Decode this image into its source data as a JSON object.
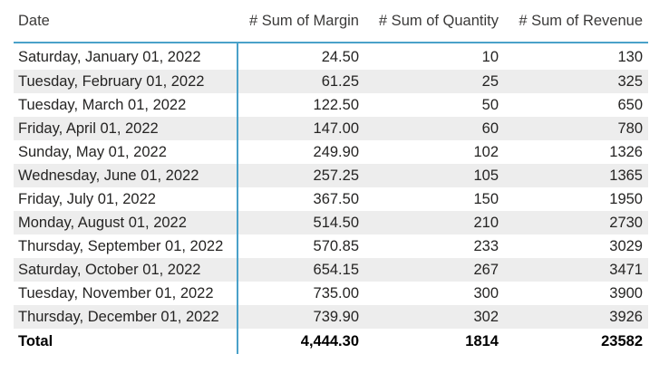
{
  "table": {
    "columns": [
      "Date",
      "# Sum of Margin",
      "# Sum of Quantity",
      "# Sum of Revenue"
    ],
    "rows": [
      [
        "Saturday, January 01, 2022",
        "24.50",
        "10",
        "130"
      ],
      [
        "Tuesday, February 01, 2022",
        "61.25",
        "25",
        "325"
      ],
      [
        "Tuesday, March 01, 2022",
        "122.50",
        "50",
        "650"
      ],
      [
        "Friday, April 01, 2022",
        "147.00",
        "60",
        "780"
      ],
      [
        "Sunday, May 01, 2022",
        "249.90",
        "102",
        "1326"
      ],
      [
        "Wednesday, June 01, 2022",
        "257.25",
        "105",
        "1365"
      ],
      [
        "Friday, July 01, 2022",
        "367.50",
        "150",
        "1950"
      ],
      [
        "Monday, August 01, 2022",
        "514.50",
        "210",
        "2730"
      ],
      [
        "Thursday, September 01, 2022",
        "570.85",
        "233",
        "3029"
      ],
      [
        "Saturday, October 01, 2022",
        "654.15",
        "267",
        "3471"
      ],
      [
        "Tuesday, November 01, 2022",
        "735.00",
        "300",
        "3900"
      ],
      [
        "Thursday, December 01, 2022",
        "739.90",
        "302",
        "3926"
      ]
    ],
    "total": {
      "label": "Total",
      "margin": "4,444.30",
      "quantity": "1814",
      "revenue": "23582"
    }
  },
  "colors": {
    "accent_divider": "#4aa1c9",
    "row_band": "#ededed",
    "text": "#252423"
  }
}
